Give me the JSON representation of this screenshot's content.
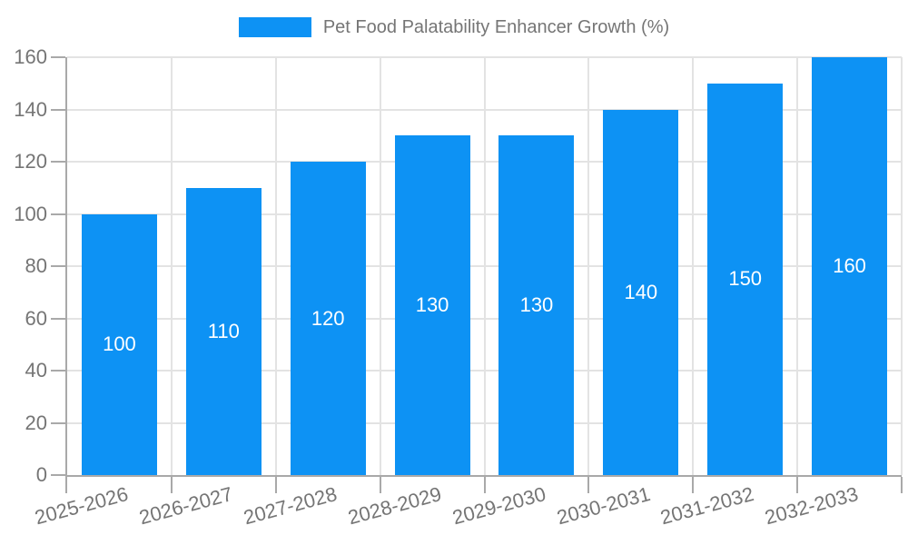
{
  "chart_data": {
    "type": "bar",
    "title": "Pet Food Palatability Enhancer Growth (%)",
    "legend_position": "top",
    "categories": [
      "2025-2026",
      "2026-2027",
      "2027-2028",
      "2028-2029",
      "2029-2030",
      "2030-2031",
      "2031-2032",
      "2032-2033"
    ],
    "series": [
      {
        "name": "Pet Food Palatability Enhancer Growth (%)",
        "values": [
          100,
          110,
          120,
          130,
          130,
          140,
          150,
          160
        ]
      }
    ],
    "xlabel": "",
    "ylabel": "",
    "ylim": [
      0,
      160
    ],
    "yticks": [
      0,
      20,
      40,
      60,
      80,
      100,
      120,
      140,
      160
    ],
    "grid": true,
    "value_labels_position": "inside-center",
    "x_tick_rotation_deg": -15,
    "colors": {
      "bar": "#0d92f4",
      "value_label": "#ffffff",
      "tick_text": "#757575",
      "gridline": "#e3e3e3",
      "axis_line": "#a9a9a9",
      "background": "#ffffff"
    }
  }
}
